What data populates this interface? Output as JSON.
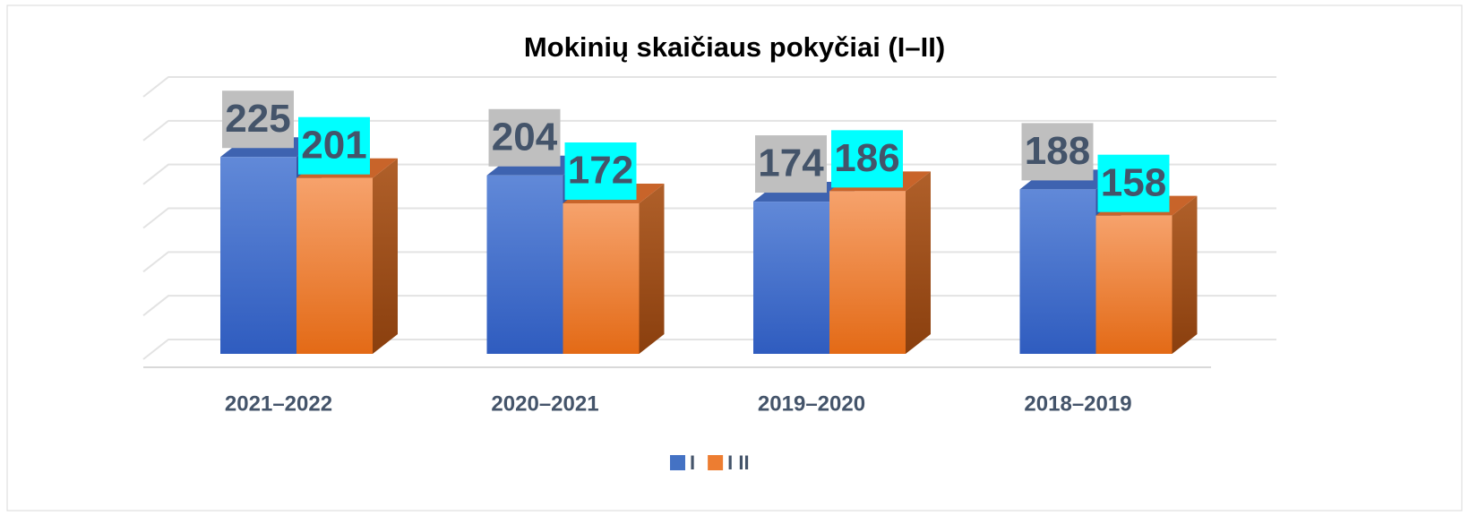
{
  "chart_data": {
    "type": "bar3d",
    "title": "Mokinių skaičiaus pokyčiai (I–II)",
    "categories": [
      "2021–2022",
      "2020–2021",
      "2019–2020",
      "2018–2019"
    ],
    "series": [
      {
        "name": "I",
        "color": "#4472c4",
        "values": [
          225,
          204,
          174,
          188
        ]
      },
      {
        "name": "I II",
        "color": "#ed7d31",
        "values": [
          201,
          172,
          186,
          158
        ]
      }
    ],
    "ylim": [
      0,
      300
    ],
    "yticks": [
      0,
      50,
      100,
      150,
      200,
      250,
      300
    ],
    "grid": true,
    "legend": "bottom"
  }
}
